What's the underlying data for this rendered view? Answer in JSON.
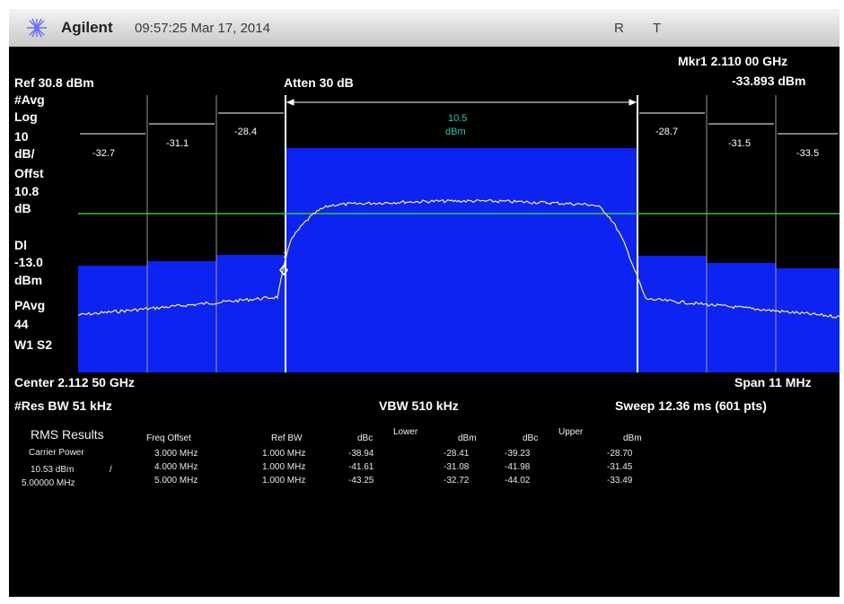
{
  "titlebar": {
    "logo_icon": "agilent-spark-icon",
    "brand": "Agilent",
    "clock": "09:57:25  Mar 17, 2014",
    "flag_r": "R",
    "flag_t": "T"
  },
  "marker": {
    "label": "Mkr1  2.110 00 GHz",
    "amplitude": "-33.893 dBm"
  },
  "header": {
    "ref_level": "Ref 30.8 dBm",
    "atten": "Atten 30 dB"
  },
  "left_annotations": [
    "#Avg",
    "Log",
    "10",
    "dB/",
    "Offst",
    "10.8",
    "dB",
    "Dl",
    "-13.0",
    "dBm",
    "PAvg",
    "44",
    "W1  S2"
  ],
  "channel": {
    "main_value": "10.5",
    "main_unit": "dBm",
    "adjacent_values": [
      "-32.7",
      "-31.1",
      "-28.4",
      "-28.7",
      "-31.5",
      "-33.5"
    ]
  },
  "footer": {
    "center": "Center 2.112 50 GHz",
    "span": "Span 11 MHz",
    "res_bw": "#Res BW 51 kHz",
    "vbw": "VBW 510 kHz",
    "sweep": "Sweep 12.36 ms (601 pts)"
  },
  "results": {
    "title": "RMS Results",
    "carrier_power_label": "Carrier Power",
    "carrier_power_value": "10.53 dBm",
    "slash": "/",
    "carrier_bw": "5.00000 MHz",
    "lower_label": "Lower",
    "upper_label": "Upper",
    "headers": [
      "Freq Offset",
      "Ref BW",
      "dBc",
      "dBm",
      "dBc",
      "dBm"
    ],
    "rows": [
      [
        "3.000 MHz",
        "1.000 MHz",
        "-38.94",
        "-28.41",
        "-39.23",
        "-28.70"
      ],
      [
        "4.000 MHz",
        "1.000 MHz",
        "-41.61",
        "-31.08",
        "-41.98",
        "-31.45"
      ],
      [
        "5.000 MHz",
        "1.000 MHz",
        "-43.25",
        "-32.72",
        "-44.02",
        "-33.49"
      ]
    ]
  },
  "colors": {
    "trace": "#f2f25a",
    "channel_fill": "#0d23f2",
    "display_line": "#3cc23c",
    "graticule": "#9a9a9a",
    "channel_text": "#2ec4b0"
  }
}
